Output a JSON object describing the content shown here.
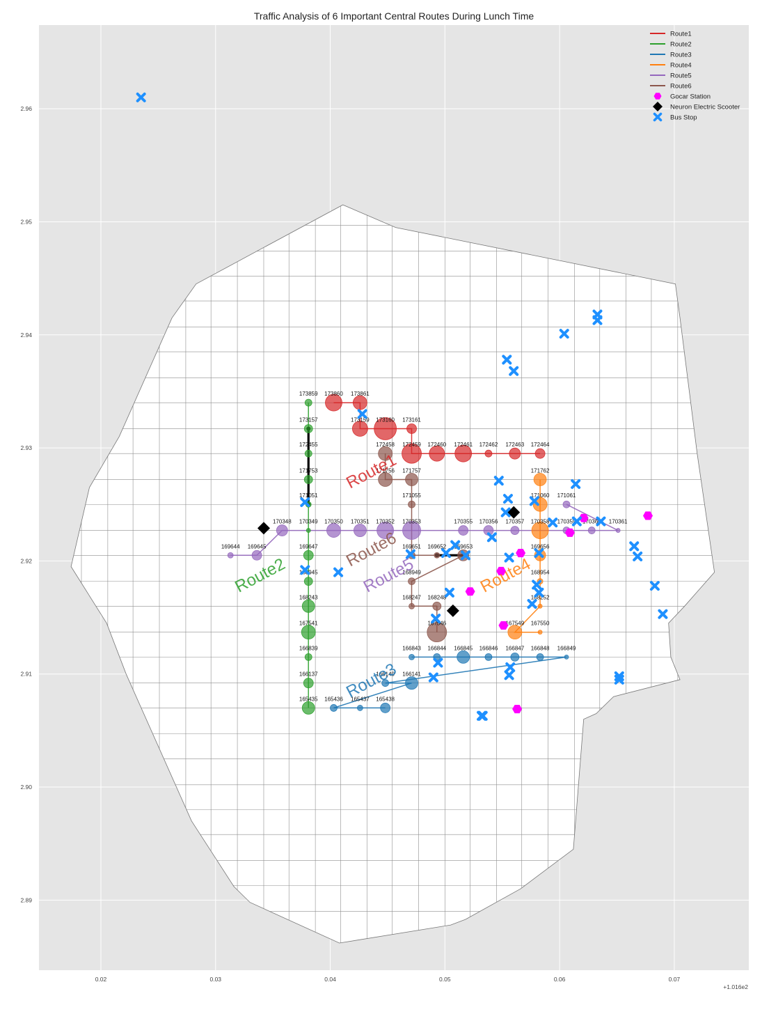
{
  "chart_data": {
    "type": "scatter",
    "title": "Traffic Analysis of 6 Important Central Routes During Lunch Time",
    "xlabel": "",
    "ylabel": "",
    "x_offset_label": "+1.016e2",
    "xlim": [
      0.0146,
      0.0765
    ],
    "ylim": [
      2.8838,
      2.9674
    ],
    "x_ticks": [
      0.02,
      0.03,
      0.04,
      0.05,
      0.06,
      0.07
    ],
    "x_tick_labels": [
      "0.02",
      "0.03",
      "0.04",
      "0.05",
      "0.06",
      "0.07"
    ],
    "y_ticks": [
      2.89,
      2.9,
      2.91,
      2.92,
      2.93,
      2.94,
      2.95,
      2.96
    ],
    "y_tick_labels": [
      "2.89",
      "2.90",
      "2.91",
      "2.92",
      "2.93",
      "2.94",
      "2.95",
      "2.96"
    ],
    "grid": true,
    "legend_position": "top-right",
    "colors": {
      "Route1": "#d62728",
      "Route2": "#2ca02c",
      "Route3": "#1f77b4",
      "Route4": "#ff7f0e",
      "Route5": "#9467bd",
      "Route6": "#8c564b",
      "gocar": "#ff00ff",
      "scooter": "#000000",
      "bus": "#1e90ff"
    },
    "boundary": [
      [
        0.0411,
        2.9515
      ],
      [
        0.0457,
        2.9495
      ],
      [
        0.0701,
        2.9445
      ],
      [
        0.0705,
        2.9415
      ],
      [
        0.072,
        2.9295
      ],
      [
        0.0735,
        2.919
      ],
      [
        0.0722,
        2.9175
      ],
      [
        0.0709,
        2.916
      ],
      [
        0.0695,
        2.9145
      ],
      [
        0.0697,
        2.9115
      ],
      [
        0.0705,
        2.9095
      ],
      [
        0.0647,
        2.908
      ],
      [
        0.0632,
        2.9065
      ],
      [
        0.0621,
        2.906
      ],
      [
        0.0612,
        2.8945
      ],
      [
        0.0566,
        2.891
      ],
      [
        0.0518,
        2.8883
      ],
      [
        0.0505,
        2.8878
      ],
      [
        0.0408,
        2.8862
      ],
      [
        0.033,
        2.8898
      ],
      [
        0.0316,
        2.8912
      ],
      [
        0.0279,
        2.897
      ],
      [
        0.0222,
        2.91
      ],
      [
        0.0205,
        2.9145
      ],
      [
        0.0174,
        2.9195
      ],
      [
        0.019,
        2.9265
      ],
      [
        0.0216,
        2.931
      ],
      [
        0.0262,
        2.9415
      ],
      [
        0.0283,
        2.9445
      ]
    ],
    "grid_lines_x": [
      0.0183,
      0.0206,
      0.0228,
      0.0251,
      0.0274,
      0.0296,
      0.0319,
      0.0342,
      0.0364,
      0.0387,
      0.0409,
      0.0432,
      0.0454,
      0.0477,
      0.05,
      0.0522,
      0.0545,
      0.0567,
      0.059,
      0.0613,
      0.0635,
      0.0658,
      0.068,
      0.0703
    ],
    "grid_lines_y": [
      2.889,
      2.8913,
      2.8935,
      2.8958,
      2.898,
      2.9002,
      2.9025,
      2.9047,
      2.907,
      2.9092,
      2.9115,
      2.9137,
      2.916,
      2.9182,
      2.9205,
      2.9227,
      2.925,
      2.9272,
      2.9295,
      2.9317,
      2.934,
      2.9362,
      2.9385,
      2.9407,
      2.943,
      2.9452,
      2.9474,
      2.9497
    ],
    "series": [
      {
        "name": "Route1",
        "labels": [
          "173860",
          "173861",
          "173159",
          "173160",
          "173161",
          "172459",
          "172460",
          "172461",
          "172462",
          "172463",
          "172464"
        ],
        "x": [
          0.0403,
          0.0426,
          0.0426,
          0.0448,
          0.0471,
          0.0471,
          0.0493,
          0.0516,
          0.0538,
          0.0561,
          0.0583
        ],
        "y": [
          2.934,
          2.934,
          2.9317,
          2.9317,
          2.9317,
          2.9295,
          2.9295,
          2.9295,
          2.9295,
          2.9295,
          2.9295
        ],
        "sizes": [
          12,
          10,
          11,
          16,
          7,
          14,
          11,
          12,
          5,
          8,
          7
        ]
      },
      {
        "name": "Route2",
        "labels": [
          "173859",
          "173157",
          "172455",
          "171753",
          "171051",
          "170349",
          "169647",
          "168945",
          "168243",
          "167541",
          "166839",
          "166137",
          "165435"
        ],
        "x": [
          0.0381,
          0.0381,
          0.0381,
          0.0381,
          0.0381,
          0.0381,
          0.0381,
          0.0381,
          0.0381,
          0.0381,
          0.0381,
          0.0381,
          0.0381
        ],
        "y": [
          2.934,
          2.9317,
          2.9295,
          2.9272,
          2.925,
          2.9227,
          2.9205,
          2.9182,
          2.916,
          2.9137,
          2.9115,
          2.9092,
          2.907
        ],
        "sizes": [
          5,
          6,
          5,
          6,
          4,
          3,
          7,
          6,
          9,
          10,
          5,
          7,
          9
        ]
      },
      {
        "name": "Route3",
        "labels": [
          "166843",
          "166844",
          "166845",
          "166846",
          "166847",
          "166848",
          "166849",
          "166140",
          "166141",
          "165436",
          "165437",
          "165438"
        ],
        "x": [
          0.0471,
          0.0493,
          0.0516,
          0.0538,
          0.0561,
          0.0583,
          0.0606,
          0.0448,
          0.0471,
          0.0403,
          0.0426,
          0.0448
        ],
        "y": [
          2.9115,
          2.9115,
          2.9115,
          2.9115,
          2.9115,
          2.9115,
          2.9115,
          2.9092,
          2.9092,
          2.907,
          2.907,
          2.907
        ],
        "sizes": [
          4,
          5,
          9,
          5,
          6,
          5,
          3,
          5,
          9,
          5,
          4,
          7
        ]
      },
      {
        "name": "Route4",
        "labels": [
          "171762",
          "171060",
          "170358",
          "169656",
          "168954",
          "168252",
          "167549",
          "167550"
        ],
        "x": [
          0.0583,
          0.0583,
          0.0583,
          0.0583,
          0.0583,
          0.0583,
          0.0561,
          0.0583
        ],
        "y": [
          2.9272,
          2.925,
          2.9227,
          2.9205,
          2.9182,
          2.916,
          2.9137,
          2.9137
        ],
        "sizes": [
          9,
          10,
          12,
          8,
          4,
          3,
          10,
          3
        ]
      },
      {
        "name": "Route5",
        "labels": [
          "169644",
          "169645",
          "170348",
          "170350",
          "170351",
          "170352",
          "170353",
          "170355",
          "170356",
          "170357",
          "170359",
          "170360",
          "170361",
          "171061"
        ],
        "x": [
          0.0313,
          0.0336,
          0.0358,
          0.0403,
          0.0426,
          0.0448,
          0.0471,
          0.0516,
          0.0538,
          0.0561,
          0.0606,
          0.0628,
          0.0651,
          0.0606
        ],
        "y": [
          2.9205,
          2.9205,
          2.9227,
          2.9227,
          2.9227,
          2.9227,
          2.9227,
          2.9227,
          2.9227,
          2.9227,
          2.9227,
          2.9227,
          2.9227,
          2.925
        ],
        "sizes": [
          4,
          7,
          8,
          10,
          9,
          12,
          13,
          7,
          7,
          6,
          5,
          5,
          3,
          5
        ]
      },
      {
        "name": "Route6",
        "labels": [
          "172458",
          "171756",
          "171757",
          "171055",
          "169651",
          "169652",
          "169653",
          "168949",
          "168247",
          "168248",
          "167546"
        ],
        "x": [
          0.0448,
          0.0448,
          0.0471,
          0.0471,
          0.0471,
          0.0493,
          0.0516,
          0.0471,
          0.0471,
          0.0493,
          0.0493
        ],
        "y": [
          2.9295,
          2.9272,
          2.9272,
          2.925,
          2.9205,
          2.9205,
          2.9205,
          2.9182,
          2.916,
          2.916,
          2.9137
        ],
        "sizes": [
          10,
          10,
          9,
          5,
          5,
          4,
          8,
          5,
          4,
          6,
          14
        ]
      }
    ],
    "route_labels": [
      {
        "name": "Route1",
        "x": 0.0438,
        "y": 2.9275,
        "rotation": -28
      },
      {
        "name": "Route2",
        "x": 0.0341,
        "y": 2.9183,
        "rotation": -28
      },
      {
        "name": "Route3",
        "x": 0.0438,
        "y": 2.909,
        "rotation": -28
      },
      {
        "name": "Route4",
        "x": 0.0555,
        "y": 2.9183,
        "rotation": -28
      },
      {
        "name": "Route5",
        "x": 0.0453,
        "y": 2.9183,
        "rotation": -28
      },
      {
        "name": "Route6",
        "x": 0.0438,
        "y": 2.9206,
        "rotation": -28
      }
    ],
    "scooter_paths": [
      {
        "x": [
          0.0381,
          0.0381
        ],
        "y": [
          2.9317,
          2.925
        ]
      },
      {
        "x": [
          0.0493,
          0.0516
        ],
        "y": [
          2.9205,
          2.9205
        ]
      }
    ],
    "gocar_stations": {
      "x": [
        0.0621,
        0.0609,
        0.0677,
        0.0566,
        0.0522,
        0.0551,
        0.0563,
        0.0549
      ],
      "y": [
        2.9238,
        2.9225,
        2.924,
        2.9207,
        2.9173,
        2.9143,
        2.9069,
        2.9191
      ]
    },
    "scooters": {
      "x": [
        0.0342,
        0.056,
        0.0507
      ],
      "y": [
        2.9229,
        2.9243,
        2.9156
      ]
    },
    "bus_stops": {
      "x": [
        0.0235,
        0.0604,
        0.0633,
        0.0633,
        0.0554,
        0.056,
        0.0547,
        0.0614,
        0.0555,
        0.0578,
        0.0553,
        0.0594,
        0.0615,
        0.0636,
        0.0541,
        0.0665,
        0.0668,
        0.0683,
        0.069,
        0.0428,
        0.0378,
        0.0407,
        0.047,
        0.0509,
        0.0501,
        0.0518,
        0.0582,
        0.0556,
        0.058,
        0.0576,
        0.0582,
        0.0504,
        0.0492,
        0.0494,
        0.049,
        0.0557,
        0.0556,
        0.0533,
        0.0532,
        0.0652,
        0.0652,
        0.0378
      ],
      "y": [
        2.961,
        2.9401,
        2.9418,
        2.9413,
        2.9378,
        2.9368,
        2.9271,
        2.9268,
        2.9255,
        2.9253,
        2.9243,
        2.9234,
        2.9235,
        2.9235,
        2.9221,
        2.9213,
        2.9204,
        2.9178,
        2.9153,
        2.933,
        2.9192,
        2.919,
        2.9206,
        2.9214,
        2.9207,
        2.9205,
        2.9207,
        2.9203,
        2.9179,
        2.9162,
        2.9172,
        2.9172,
        2.9149,
        2.911,
        2.9097,
        2.9106,
        2.9099,
        2.9063,
        2.9063,
        2.9098,
        2.9095,
        2.9252
      ]
    },
    "legend": [
      {
        "label": "Route1",
        "kind": "line",
        "color": "#d62728"
      },
      {
        "label": "Route2",
        "kind": "line",
        "color": "#2ca02c"
      },
      {
        "label": "Route3",
        "kind": "line",
        "color": "#1f77b4"
      },
      {
        "label": "Route4",
        "kind": "line",
        "color": "#ff7f0e"
      },
      {
        "label": "Route5",
        "kind": "line",
        "color": "#9467bd"
      },
      {
        "label": "Route6",
        "kind": "line",
        "color": "#8c564b"
      },
      {
        "label": "Gocar Station",
        "kind": "hexagon",
        "color": "#ff00ff"
      },
      {
        "label": "Neuron Electric Scooter",
        "kind": "diamond",
        "color": "#000000"
      },
      {
        "label": "Bus Stop",
        "kind": "cross",
        "color": "#1e90ff"
      }
    ]
  }
}
